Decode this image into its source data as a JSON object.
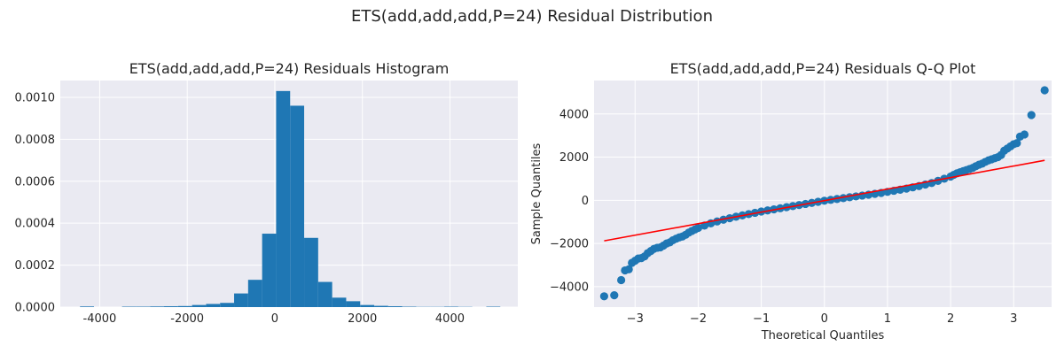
{
  "suptitle": "ETS(add,add,add,P=24) Residual Distribution",
  "colors": {
    "bar": "#1f77b4",
    "point": "#1f77b4",
    "line": "#ff0000",
    "background": "#eaeaf2",
    "grid": "#ffffff"
  },
  "chart_data": [
    {
      "type": "bar",
      "title": "ETS(add,add,add,P=24) Residuals Histogram",
      "xlabel": "",
      "ylabel": "",
      "xlim": [
        -4900,
        5550
      ],
      "ylim": [
        0,
        0.00108
      ],
      "xticks": [
        "-4000",
        "-2000",
        "0",
        "2000",
        "4000"
      ],
      "xtick_values": [
        -4000,
        -2000,
        0,
        2000,
        4000
      ],
      "yticks": [
        "0.0000",
        "0.0002",
        "0.0004",
        "0.0006",
        "0.0008",
        "0.0010"
      ],
      "ytick_values": [
        0,
        0.0002,
        0.0004,
        0.0006,
        0.0008,
        0.001
      ],
      "grid": true,
      "bin_edges": [
        -4450,
        -4130,
        -3810,
        -3490,
        -3170,
        -2850,
        -2530,
        -2210,
        -1890,
        -1570,
        -1250,
        -930,
        -610,
        -290,
        30,
        350,
        670,
        990,
        1310,
        1630,
        1950,
        2270,
        2590,
        2910,
        3230,
        3550,
        3870,
        4190,
        4510,
        4830,
        5150
      ],
      "values": [
        3e-06,
        0,
        0,
        2e-06,
        2e-06,
        3e-06,
        4e-06,
        5e-06,
        1e-05,
        1.5e-05,
        2e-05,
        6.5e-05,
        0.00013,
        0.00035,
        0.00103,
        0.00096,
        0.00033,
        0.00012,
        4.5e-05,
        2.8e-05,
        1e-05,
        6e-06,
        4e-06,
        2e-06,
        1e-06,
        1e-06,
        2e-06,
        1e-06,
        0,
        2e-06
      ]
    },
    {
      "type": "scatter",
      "title": "ETS(add,add,add,P=24) Residuals Q-Q Plot",
      "xlabel": "Theoretical Quantiles",
      "ylabel": "Sample Quantiles",
      "xlim": [
        -3.65,
        3.6
      ],
      "ylim": [
        -4950,
        5550
      ],
      "xticks": [
        "−3",
        "−2",
        "−1",
        "0",
        "1",
        "2",
        "3"
      ],
      "xtick_values": [
        -3,
        -2,
        -1,
        0,
        1,
        2,
        3
      ],
      "yticks": [
        "−4000",
        "−2000",
        "0",
        "2000",
        "4000"
      ],
      "ytick_values": [
        -4000,
        -2000,
        0,
        2000,
        4000
      ],
      "grid": true,
      "points": [
        [
          -3.49,
          -4450
        ],
        [
          -3.33,
          -4400
        ],
        [
          -3.22,
          -3700
        ],
        [
          -3.16,
          -3250
        ],
        [
          -3.1,
          -3200
        ],
        [
          -3.05,
          -2900
        ],
        [
          -3.0,
          -2800
        ],
        [
          -2.95,
          -2700
        ],
        [
          -2.9,
          -2680
        ],
        [
          -2.85,
          -2600
        ],
        [
          -2.8,
          -2450
        ],
        [
          -2.75,
          -2350
        ],
        [
          -2.7,
          -2250
        ],
        [
          -2.65,
          -2200
        ],
        [
          -2.6,
          -2180
        ],
        [
          -2.55,
          -2100
        ],
        [
          -2.5,
          -2000
        ],
        [
          -2.45,
          -1950
        ],
        [
          -2.4,
          -1850
        ],
        [
          -2.35,
          -1780
        ],
        [
          -2.3,
          -1720
        ],
        [
          -2.25,
          -1680
        ],
        [
          -2.2,
          -1600
        ],
        [
          -2.15,
          -1500
        ],
        [
          -2.1,
          -1420
        ],
        [
          -2.05,
          -1350
        ],
        [
          -2.0,
          -1280
        ],
        [
          -1.9,
          -1170
        ],
        [
          -1.8,
          -1070
        ],
        [
          -1.7,
          -980
        ],
        [
          -1.6,
          -900
        ],
        [
          -1.5,
          -830
        ],
        [
          -1.4,
          -760
        ],
        [
          -1.3,
          -700
        ],
        [
          -1.2,
          -640
        ],
        [
          -1.1,
          -580
        ],
        [
          -1.0,
          -520
        ],
        [
          -0.9,
          -470
        ],
        [
          -0.8,
          -420
        ],
        [
          -0.7,
          -370
        ],
        [
          -0.6,
          -320
        ],
        [
          -0.5,
          -270
        ],
        [
          -0.4,
          -220
        ],
        [
          -0.3,
          -170
        ],
        [
          -0.2,
          -120
        ],
        [
          -0.1,
          -70
        ],
        [
          0.0,
          -20
        ],
        [
          0.1,
          20
        ],
        [
          0.2,
          60
        ],
        [
          0.3,
          100
        ],
        [
          0.4,
          140
        ],
        [
          0.5,
          180
        ],
        [
          0.6,
          220
        ],
        [
          0.7,
          260
        ],
        [
          0.8,
          300
        ],
        [
          0.9,
          340
        ],
        [
          1.0,
          390
        ],
        [
          1.1,
          440
        ],
        [
          1.2,
          490
        ],
        [
          1.3,
          540
        ],
        [
          1.4,
          600
        ],
        [
          1.5,
          660
        ],
        [
          1.6,
          730
        ],
        [
          1.7,
          800
        ],
        [
          1.8,
          900
        ],
        [
          1.9,
          1000
        ],
        [
          2.0,
          1100
        ],
        [
          2.05,
          1180
        ],
        [
          2.1,
          1250
        ],
        [
          2.15,
          1300
        ],
        [
          2.2,
          1350
        ],
        [
          2.25,
          1400
        ],
        [
          2.3,
          1450
        ],
        [
          2.35,
          1500
        ],
        [
          2.4,
          1580
        ],
        [
          2.45,
          1650
        ],
        [
          2.5,
          1700
        ],
        [
          2.55,
          1780
        ],
        [
          2.6,
          1850
        ],
        [
          2.65,
          1900
        ],
        [
          2.7,
          1950
        ],
        [
          2.75,
          2000
        ],
        [
          2.8,
          2100
        ],
        [
          2.85,
          2300
        ],
        [
          2.9,
          2400
        ],
        [
          2.95,
          2500
        ],
        [
          3.0,
          2600
        ],
        [
          3.05,
          2650
        ],
        [
          3.1,
          2950
        ],
        [
          3.17,
          3050
        ],
        [
          3.28,
          3950
        ],
        [
          3.49,
          5100
        ]
      ],
      "fit_line": {
        "x": [
          -3.49,
          3.49
        ],
        "y": [
          -1880,
          1850
        ]
      }
    }
  ]
}
